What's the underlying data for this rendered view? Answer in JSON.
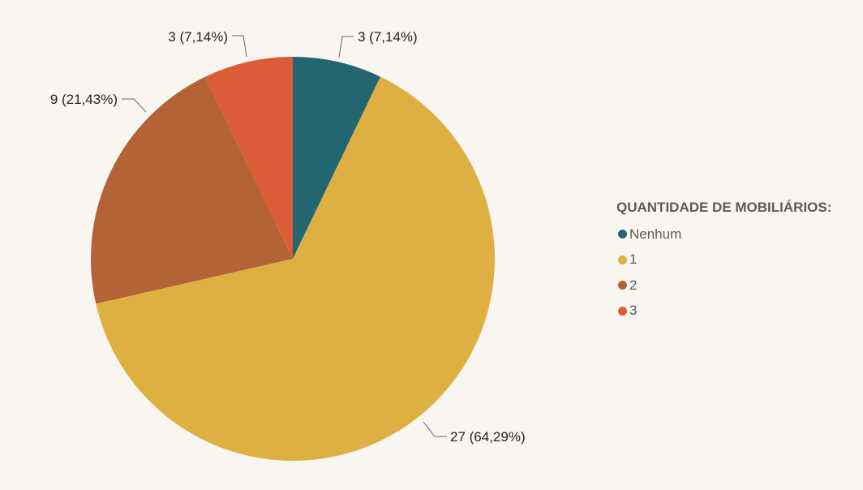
{
  "chart_data": {
    "type": "pie",
    "legend_title": "QUANTIDADE DE MOBILIÁRIOS:",
    "legend_position": "right",
    "slices": [
      {
        "label": "Nenhum",
        "value": 3,
        "percent": "7,14%",
        "color": "#236672"
      },
      {
        "label": "1",
        "value": 27,
        "percent": "64,29%",
        "color": "#deb041"
      },
      {
        "label": "2",
        "value": 9,
        "percent": "21,43%",
        "color": "#b36335"
      },
      {
        "label": "3",
        "value": 3,
        "percent": "7,14%",
        "color": "#dc5b39"
      }
    ],
    "data_labels": [
      "3 (7,14%)",
      "27 (64,29%)",
      "9 (21,43%)",
      "3 (7,14%)"
    ]
  }
}
